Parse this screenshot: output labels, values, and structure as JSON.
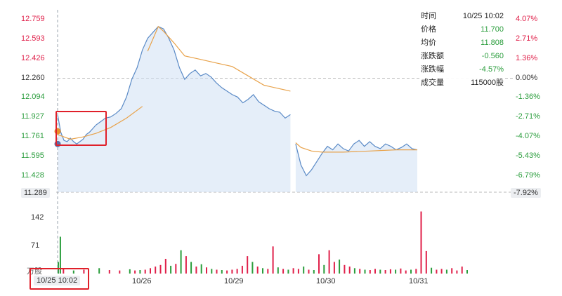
{
  "chart_data": {
    "type": "line",
    "ylim": [
      11.289,
      12.759
    ],
    "prev_close": 12.26,
    "y_ticks_left": [
      "12.759",
      "12.593",
      "12.426",
      "12.260",
      "12.094",
      "11.927",
      "11.761",
      "11.595",
      "11.428"
    ],
    "y_ticks_right": [
      "4.07%",
      "2.71%",
      "1.36%",
      "0.00%",
      "-1.36%",
      "-2.71%",
      "-4.07%",
      "-5.43%",
      "-6.79%"
    ],
    "low_left": "11.289",
    "low_right": "-7.92%",
    "x_labels": [
      "10/26",
      "10/29",
      "10/30",
      "10/31"
    ],
    "volume_ticks": [
      "142",
      "71"
    ],
    "volume_unit": "万股",
    "colors": {
      "up": "#e0204a",
      "down": "#2a9d3c",
      "price_line": "#5a8ac6",
      "avg_line": "#e8a24a",
      "fill": "#cfe0f4"
    },
    "price_series": [
      [
        0,
        11.95
      ],
      [
        1,
        11.8
      ],
      [
        2,
        11.73
      ],
      [
        3,
        11.72
      ],
      [
        4,
        11.75
      ],
      [
        5,
        11.72
      ],
      [
        6,
        11.7
      ],
      [
        7,
        11.72
      ],
      [
        8,
        11.74
      ],
      [
        9,
        11.78
      ],
      [
        10,
        11.8
      ],
      [
        11,
        11.83
      ],
      [
        12,
        11.86
      ],
      [
        13,
        11.88
      ],
      [
        14,
        11.9
      ],
      [
        15,
        11.92
      ],
      [
        16,
        11.93
      ],
      [
        17,
        11.96
      ],
      [
        18,
        12.0
      ],
      [
        19,
        12.1
      ],
      [
        20,
        12.25
      ],
      [
        21,
        12.35
      ],
      [
        22,
        12.5
      ],
      [
        23,
        12.6
      ],
      [
        24,
        12.65
      ],
      [
        25,
        12.7
      ],
      [
        26,
        12.68
      ],
      [
        27,
        12.6
      ],
      [
        28,
        12.5
      ],
      [
        29,
        12.35
      ],
      [
        30,
        12.25
      ],
      [
        31,
        12.3
      ],
      [
        32,
        12.33
      ],
      [
        33,
        12.28
      ],
      [
        34,
        12.3
      ],
      [
        35,
        12.27
      ],
      [
        36,
        12.22
      ],
      [
        37,
        12.18
      ],
      [
        38,
        12.15
      ],
      [
        39,
        12.12
      ],
      [
        40,
        12.1
      ],
      [
        41,
        12.05
      ],
      [
        42,
        12.08
      ],
      [
        43,
        12.12
      ],
      [
        44,
        12.06
      ],
      [
        45,
        12.03
      ],
      [
        46,
        12.0
      ],
      [
        47,
        11.98
      ],
      [
        48,
        11.97
      ],
      [
        49,
        11.92
      ],
      [
        50,
        11.95
      ],
      [
        51,
        11.7
      ],
      [
        52,
        11.52
      ],
      [
        53,
        11.43
      ],
      [
        54,
        11.48
      ],
      [
        55,
        11.55
      ],
      [
        56,
        11.62
      ],
      [
        57,
        11.68
      ],
      [
        58,
        11.65
      ],
      [
        59,
        11.7
      ],
      [
        60,
        11.66
      ],
      [
        61,
        11.64
      ],
      [
        62,
        11.7
      ],
      [
        63,
        11.73
      ],
      [
        64,
        11.68
      ],
      [
        65,
        11.72
      ],
      [
        66,
        11.68
      ],
      [
        67,
        11.66
      ],
      [
        68,
        11.7
      ],
      [
        69,
        11.68
      ],
      [
        70,
        11.65
      ],
      [
        71,
        11.67
      ],
      [
        72,
        11.7
      ],
      [
        73,
        11.66
      ],
      [
        74,
        11.65
      ]
    ],
    "avg_series": [
      [
        0,
        11.78
      ],
      [
        4,
        11.74
      ],
      [
        8,
        11.76
      ],
      [
        12,
        11.79
      ],
      [
        16,
        11.84
      ],
      [
        19,
        11.92
      ],
      [
        22,
        12.02
      ],
      [
        23,
        12.49
      ],
      [
        25,
        12.7
      ],
      [
        26,
        12.66
      ],
      [
        28,
        12.56
      ],
      [
        30,
        12.45
      ],
      [
        33,
        12.42
      ],
      [
        36,
        12.39
      ],
      [
        39,
        12.36
      ],
      [
        42,
        12.28
      ],
      [
        45,
        12.2
      ],
      [
        48,
        12.17
      ],
      [
        50,
        12.15
      ],
      [
        51,
        11.71
      ],
      [
        52,
        11.67
      ],
      [
        54,
        11.64
      ],
      [
        56,
        11.63
      ],
      [
        60,
        11.63
      ],
      [
        65,
        11.64
      ],
      [
        70,
        11.65
      ],
      [
        74,
        11.65
      ]
    ],
    "volume": [
      [
        0,
        30,
        "down"
      ],
      [
        0.4,
        95,
        "down"
      ],
      [
        1,
        12,
        "up"
      ],
      [
        3,
        8,
        "down"
      ],
      [
        5,
        10,
        "up"
      ],
      [
        8,
        14,
        "down"
      ],
      [
        10,
        9,
        "up"
      ],
      [
        12,
        8,
        "up"
      ],
      [
        14,
        11,
        "down"
      ],
      [
        15,
        8,
        "up"
      ],
      [
        16,
        9,
        "down"
      ],
      [
        17,
        10,
        "up"
      ],
      [
        18,
        14,
        "up"
      ],
      [
        19,
        18,
        "up"
      ],
      [
        20,
        22,
        "up"
      ],
      [
        21,
        38,
        "up"
      ],
      [
        22,
        20,
        "down"
      ],
      [
        23,
        25,
        "up"
      ],
      [
        24,
        60,
        "down"
      ],
      [
        25,
        45,
        "up"
      ],
      [
        26,
        30,
        "down"
      ],
      [
        27,
        18,
        "up"
      ],
      [
        28,
        24,
        "down"
      ],
      [
        29,
        16,
        "up"
      ],
      [
        30,
        12,
        "down"
      ],
      [
        31,
        10,
        "up"
      ],
      [
        32,
        9,
        "down"
      ],
      [
        33,
        8,
        "up"
      ],
      [
        34,
        10,
        "up"
      ],
      [
        35,
        12,
        "up"
      ],
      [
        36,
        20,
        "up"
      ],
      [
        37,
        45,
        "up"
      ],
      [
        38,
        30,
        "down"
      ],
      [
        39,
        18,
        "up"
      ],
      [
        40,
        14,
        "down"
      ],
      [
        41,
        12,
        "up"
      ],
      [
        42,
        70,
        "up"
      ],
      [
        43,
        16,
        "down"
      ],
      [
        44,
        12,
        "up"
      ],
      [
        45,
        10,
        "down"
      ],
      [
        46,
        14,
        "up"
      ],
      [
        47,
        12,
        "up"
      ],
      [
        48,
        18,
        "down"
      ],
      [
        49,
        10,
        "up"
      ],
      [
        50,
        9,
        "down"
      ],
      [
        51,
        50,
        "up"
      ],
      [
        52,
        22,
        "down"
      ],
      [
        53,
        60,
        "up"
      ],
      [
        54,
        30,
        "up"
      ],
      [
        55,
        36,
        "down"
      ],
      [
        56,
        22,
        "up"
      ],
      [
        57,
        18,
        "up"
      ],
      [
        58,
        14,
        "down"
      ],
      [
        59,
        12,
        "up"
      ],
      [
        60,
        10,
        "down"
      ],
      [
        61,
        9,
        "up"
      ],
      [
        62,
        12,
        "up"
      ],
      [
        63,
        10,
        "down"
      ],
      [
        64,
        9,
        "up"
      ],
      [
        65,
        11,
        "up"
      ],
      [
        66,
        10,
        "down"
      ],
      [
        67,
        13,
        "up"
      ],
      [
        68,
        8,
        "up"
      ],
      [
        69,
        10,
        "down"
      ],
      [
        70,
        12,
        "up"
      ],
      [
        71,
        160,
        "up"
      ],
      [
        72,
        58,
        "up"
      ],
      [
        73,
        15,
        "down"
      ],
      [
        74,
        10,
        "up"
      ],
      [
        75,
        12,
        "up"
      ],
      [
        76,
        10,
        "down"
      ],
      [
        77,
        14,
        "up"
      ],
      [
        78,
        8,
        "up"
      ],
      [
        79,
        18,
        "up"
      ],
      [
        80,
        9,
        "down"
      ]
    ]
  },
  "tooltip": {
    "rows": [
      {
        "label": "时间",
        "value": "10/25 10:02"
      },
      {
        "label": "价格",
        "value": "11.700"
      },
      {
        "label": "均价",
        "value": "11.808"
      },
      {
        "label": "涨跌额",
        "value": "-0.560"
      },
      {
        "label": "涨跌幅",
        "value": "-4.57%"
      },
      {
        "label": "成交量",
        "value": "115000股"
      }
    ]
  },
  "cursor": {
    "time_label": "10/25 10:02"
  }
}
